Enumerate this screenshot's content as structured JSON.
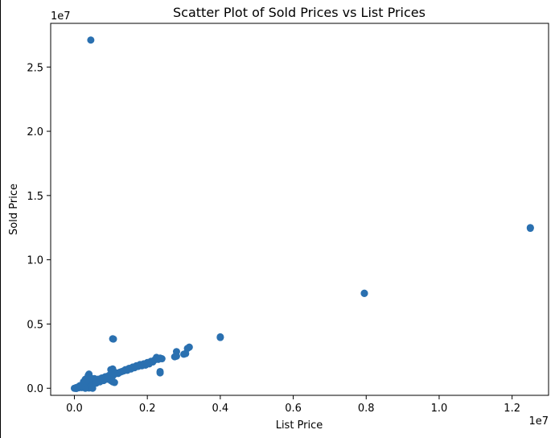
{
  "chart_data": {
    "type": "scatter",
    "title": "Scatter Plot of Sold Prices vs List Prices",
    "xlabel": "List Price",
    "ylabel": "Sold Price",
    "x_offset_text": "1e7",
    "y_offset_text": "1e7",
    "xlim": [
      -0.065,
      1.3
    ],
    "ylim": [
      -0.055,
      2.84
    ],
    "xticks": [
      0.0,
      0.2,
      0.4,
      0.6,
      0.8,
      1.0,
      1.2
    ],
    "xtick_labels": [
      "0.0",
      "0.2",
      "0.4",
      "0.6",
      "0.8",
      "1.0",
      "1.2"
    ],
    "yticks": [
      0.0,
      0.5,
      1.0,
      1.5,
      2.0,
      2.5
    ],
    "ytick_labels": [
      "0.0",
      "0.5",
      "1.0",
      "1.5",
      "2.0",
      "2.5"
    ],
    "grid": false,
    "marker_color": "#2a70b0",
    "units_note": "values in units of 1e7",
    "points": [
      [
        0.045,
        2.71
      ],
      [
        1.25,
        1.25
      ],
      [
        1.25,
        1.245
      ],
      [
        0.795,
        0.74
      ],
      [
        0.795,
        0.738
      ],
      [
        0.4,
        0.4
      ],
      [
        0.4,
        0.395
      ],
      [
        0.105,
        0.385
      ],
      [
        0.107,
        0.383
      ],
      [
        0.315,
        0.32
      ],
      [
        0.31,
        0.31
      ],
      [
        0.305,
        0.27
      ],
      [
        0.3,
        0.265
      ],
      [
        0.28,
        0.285
      ],
      [
        0.28,
        0.25
      ],
      [
        0.275,
        0.245
      ],
      [
        0.235,
        0.235
      ],
      [
        0.24,
        0.23
      ],
      [
        0.225,
        0.24
      ],
      [
        0.23,
        0.225
      ],
      [
        0.22,
        0.22
      ],
      [
        0.235,
        0.13
      ],
      [
        0.235,
        0.12
      ],
      [
        0.215,
        0.205
      ],
      [
        0.21,
        0.21
      ],
      [
        0.205,
        0.19
      ],
      [
        0.2,
        0.2
      ],
      [
        0.195,
        0.18
      ],
      [
        0.19,
        0.19
      ],
      [
        0.185,
        0.175
      ],
      [
        0.18,
        0.185
      ],
      [
        0.175,
        0.17
      ],
      [
        0.17,
        0.175
      ],
      [
        0.165,
        0.16
      ],
      [
        0.16,
        0.165
      ],
      [
        0.155,
        0.15
      ],
      [
        0.15,
        0.155
      ],
      [
        0.145,
        0.14
      ],
      [
        0.14,
        0.145
      ],
      [
        0.135,
        0.135
      ],
      [
        0.13,
        0.13
      ],
      [
        0.125,
        0.125
      ],
      [
        0.12,
        0.115
      ],
      [
        0.115,
        0.12
      ],
      [
        0.11,
        0.11
      ],
      [
        0.105,
        0.15
      ],
      [
        0.1,
        0.145
      ],
      [
        0.105,
        0.13
      ],
      [
        0.1,
        0.105
      ],
      [
        0.105,
        0.095
      ],
      [
        0.1,
        0.06
      ],
      [
        0.105,
        0.05
      ],
      [
        0.11,
        0.045
      ],
      [
        0.095,
        0.095
      ],
      [
        0.09,
        0.09
      ],
      [
        0.085,
        0.085
      ],
      [
        0.08,
        0.08
      ],
      [
        0.075,
        0.075
      ],
      [
        0.07,
        0.07
      ],
      [
        0.065,
        0.065
      ],
      [
        0.06,
        0.06
      ],
      [
        0.055,
        0.06
      ],
      [
        0.05,
        0.05
      ],
      [
        0.045,
        0.05
      ],
      [
        0.04,
        0.045
      ],
      [
        0.035,
        0.035
      ],
      [
        0.03,
        0.03
      ],
      [
        0.025,
        0.025
      ],
      [
        0.02,
        0.02
      ],
      [
        0.015,
        0.015
      ],
      [
        0.01,
        0.01
      ],
      [
        0.005,
        0.005
      ],
      [
        0.0,
        0.0
      ],
      [
        0.005,
        -0.002
      ],
      [
        0.012,
        0.004
      ],
      [
        0.018,
        0.01
      ],
      [
        0.022,
        0.018
      ],
      [
        0.028,
        0.02
      ],
      [
        0.04,
        0.11
      ],
      [
        0.038,
        0.1
      ],
      [
        0.035,
        0.06
      ],
      [
        0.03,
        0.07
      ],
      [
        0.025,
        0.05
      ],
      [
        0.045,
        0.08
      ],
      [
        0.05,
        0.07
      ],
      [
        0.055,
        0.075
      ],
      [
        0.06,
        0.055
      ],
      [
        0.065,
        0.07
      ],
      [
        0.07,
        0.065
      ],
      [
        0.075,
        0.08
      ],
      [
        0.085,
        0.09
      ],
      [
        0.09,
        0.085
      ],
      [
        0.095,
        0.1
      ],
      [
        0.04,
        0.002
      ],
      [
        0.045,
        0.012
      ],
      [
        0.05,
        0.0
      ],
      [
        0.03,
        0.0
      ],
      [
        0.02,
        0.005
      ],
      [
        0.015,
        0.02
      ],
      [
        0.06,
        0.04
      ],
      [
        0.07,
        0.05
      ],
      [
        0.08,
        0.06
      ],
      [
        0.088,
        0.07
      ]
    ]
  }
}
